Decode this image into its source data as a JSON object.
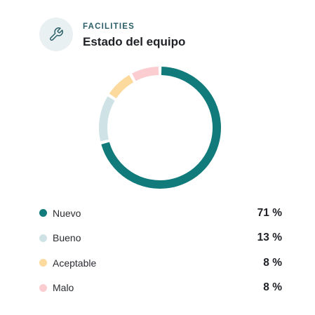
{
  "header": {
    "kicker": "FACILITIES",
    "title": "Estado del equipo",
    "icon": "wrench-icon"
  },
  "colors": {
    "icon_stroke": "#2b5f68",
    "icon_badge": "#e9f0f1"
  },
  "chart_data": {
    "type": "pie",
    "variant": "donut",
    "title": "Estado del equipo",
    "categories": [
      "Nuevo",
      "Bueno",
      "Aceptable",
      "Malo"
    ],
    "values": [
      71,
      13,
      8,
      8
    ],
    "value_labels": [
      "71 %",
      "13 %",
      "8 %",
      "8 %"
    ],
    "colors": [
      "#117a7a",
      "#cfe3e6",
      "#fcd99c",
      "#fbcdd1"
    ],
    "legend_position": "bottom",
    "start_angle_deg": 0,
    "direction": "clockwise"
  }
}
